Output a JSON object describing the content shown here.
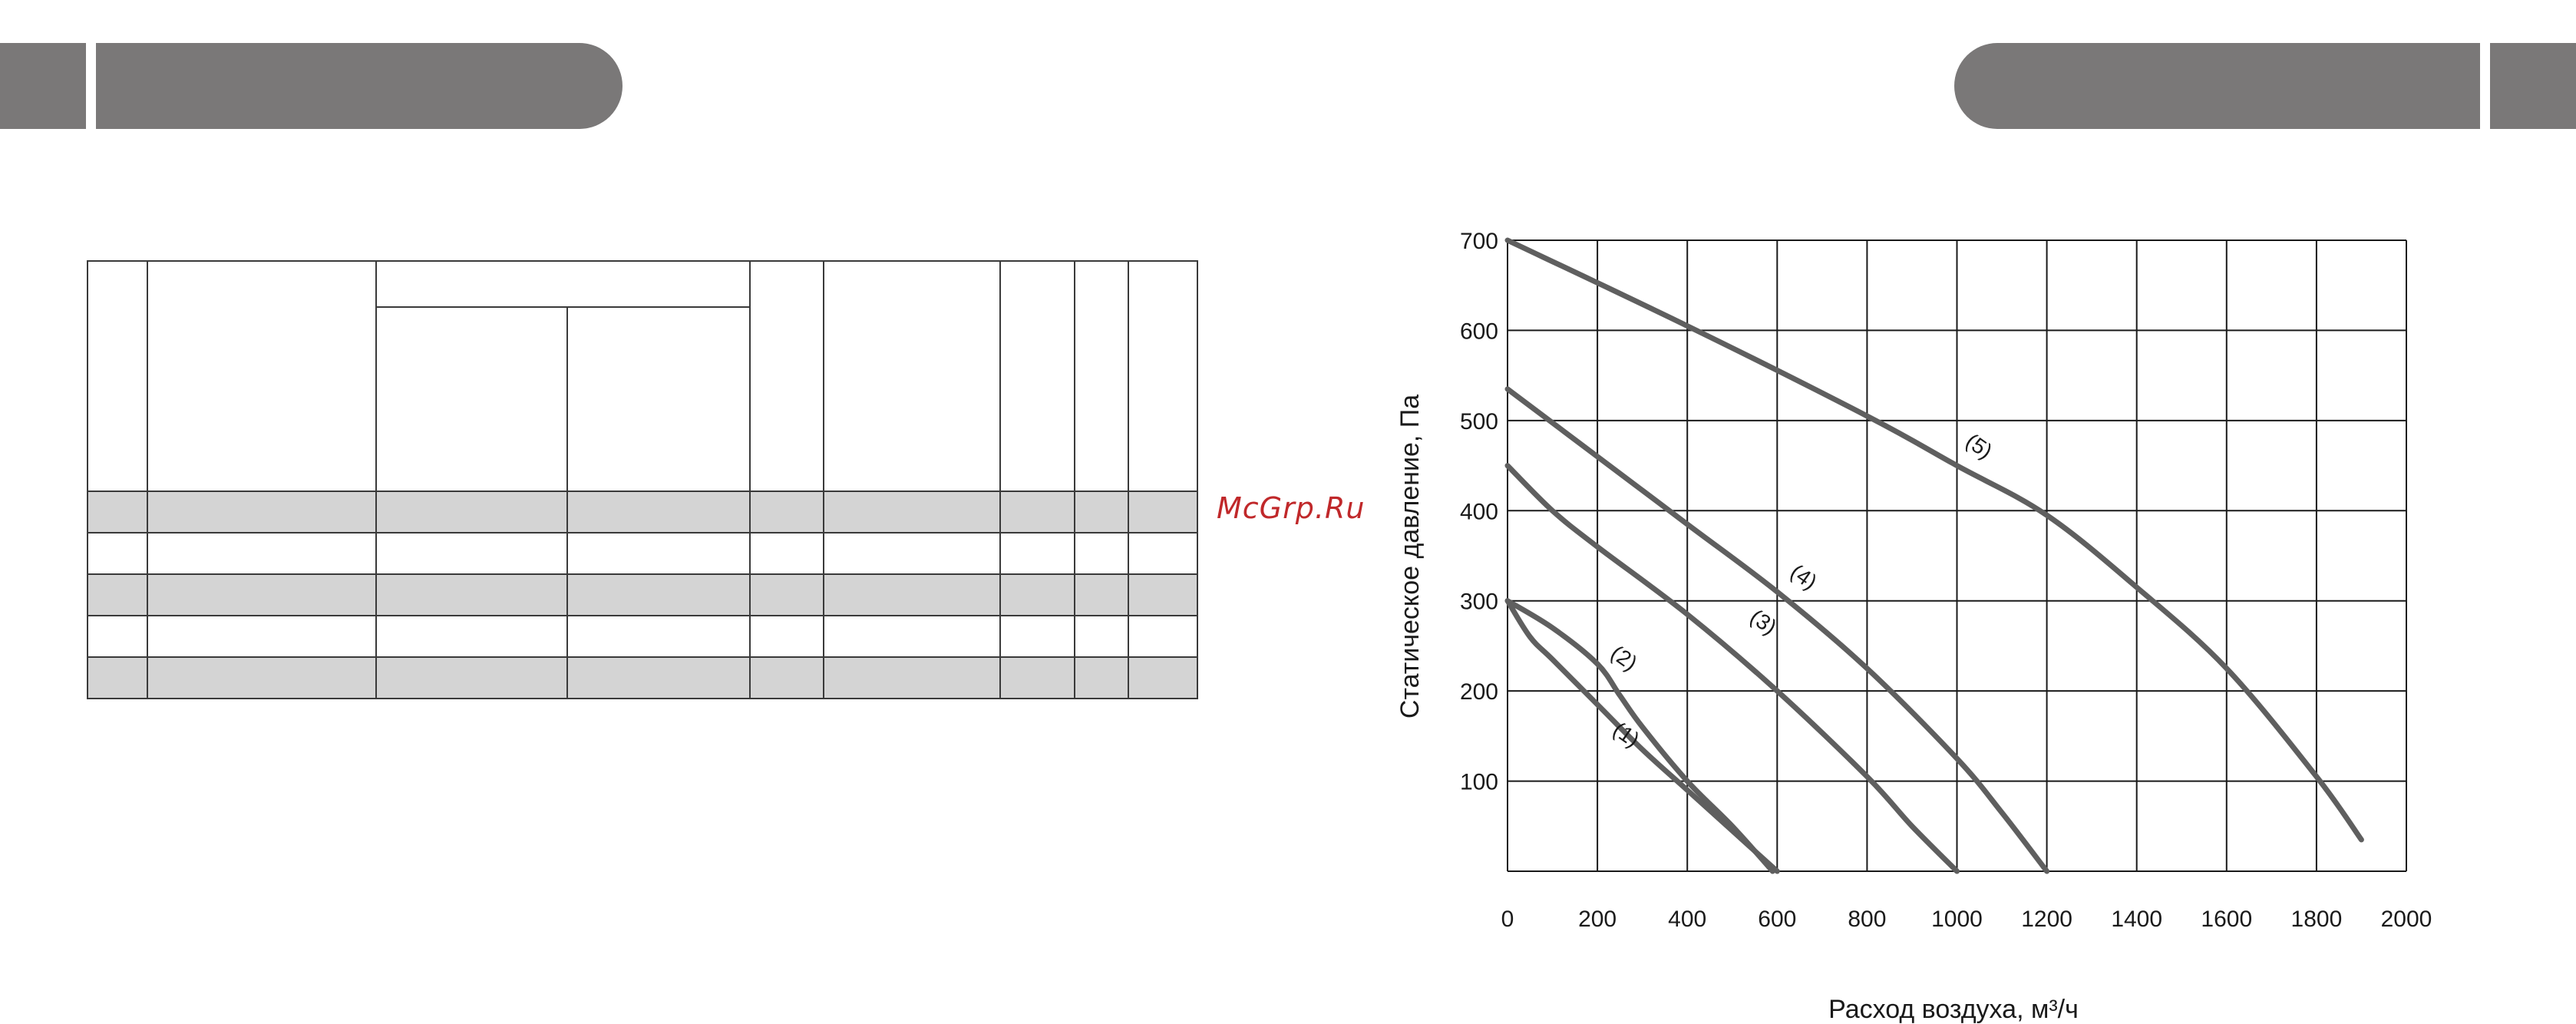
{
  "watermark": "McGrp.Ru",
  "colors": {
    "header_bar": "#7a7878",
    "table_shade": "#d4d4d4",
    "curve": "#5f5f5f",
    "grid": "#1a1a1a",
    "watermark": "#c0282a"
  },
  "chart_data": {
    "type": "line",
    "xlabel": "Расход воздуха, м³/ч",
    "ylabel": "Статическое давление, Па",
    "xlim": [
      0,
      2000
    ],
    "ylim": [
      0,
      700
    ],
    "xticks": [
      "0",
      "200",
      "400",
      "600",
      "800",
      "1000",
      "1200",
      "1400",
      "1600",
      "1800",
      "2000"
    ],
    "yticks": [
      "100",
      "200",
      "300",
      "400",
      "500",
      "600",
      "700"
    ],
    "grid": true,
    "series": [
      {
        "name": "(1)",
        "x": [
          0,
          50,
          100,
          200,
          300,
          400,
          500,
          600
        ],
        "y": [
          300,
          260,
          235,
          185,
          135,
          90,
          45,
          0
        ]
      },
      {
        "name": "(2)",
        "x": [
          0,
          100,
          200,
          250,
          300,
          400,
          500,
          590
        ],
        "y": [
          300,
          270,
          230,
          195,
          160,
          100,
          50,
          0
        ]
      },
      {
        "name": "(3)",
        "x": [
          0,
          100,
          200,
          400,
          600,
          800,
          900,
          1000
        ],
        "y": [
          450,
          400,
          360,
          285,
          200,
          105,
          50,
          0
        ]
      },
      {
        "name": "(4)",
        "x": [
          0,
          200,
          400,
          600,
          800,
          1000,
          1100,
          1200
        ],
        "y": [
          535,
          460,
          385,
          310,
          225,
          125,
          65,
          0
        ]
      },
      {
        "name": "(5)",
        "x": [
          0,
          400,
          800,
          1000,
          1200,
          1400,
          1600,
          1800,
          1900
        ],
        "y": [
          700,
          605,
          505,
          450,
          395,
          315,
          225,
          105,
          35
        ]
      }
    ],
    "annotations": [
      {
        "text": "(1)",
        "x": 255,
        "y": 145
      },
      {
        "text": "(2)",
        "x": 250,
        "y": 230
      },
      {
        "text": "(3)",
        "x": 560,
        "y": 270
      },
      {
        "text": "(4)",
        "x": 650,
        "y": 320
      },
      {
        "text": "(5)",
        "x": 1040,
        "y": 465
      }
    ]
  }
}
